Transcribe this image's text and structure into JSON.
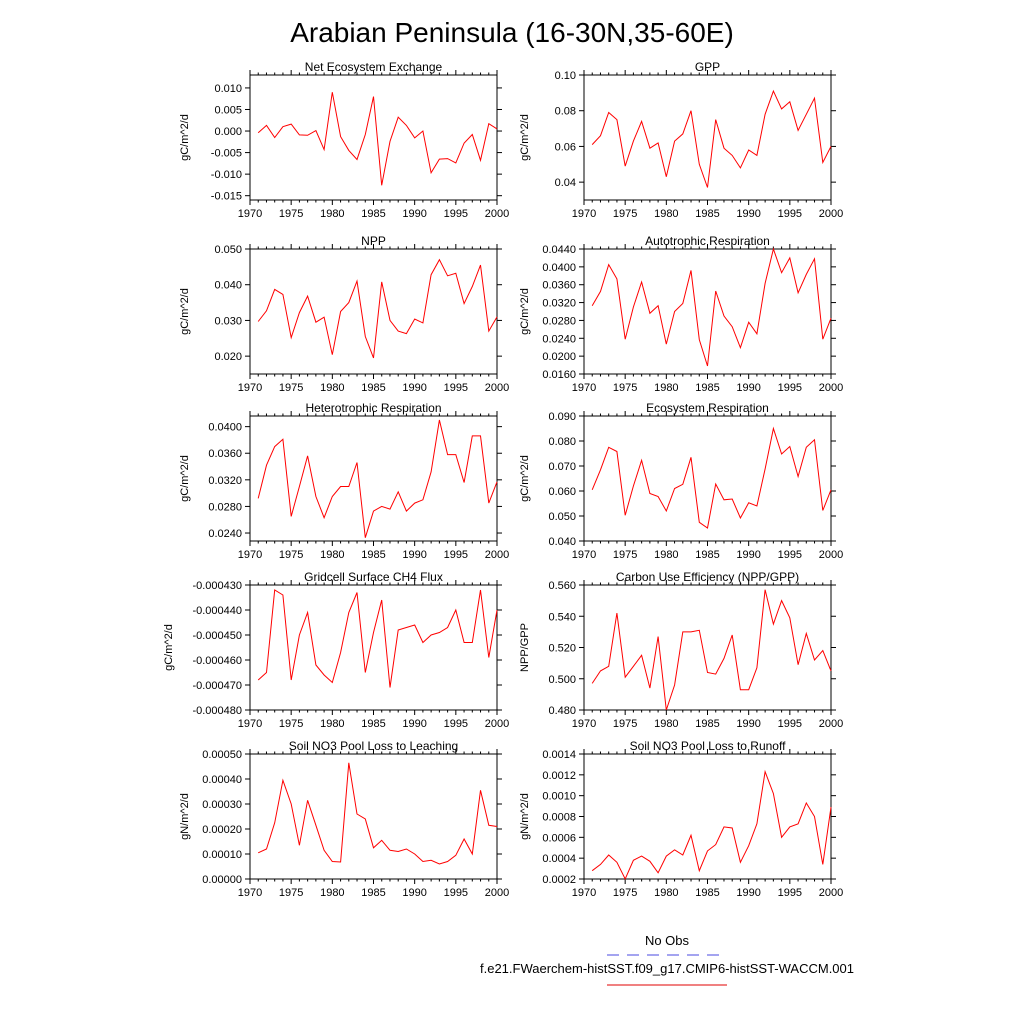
{
  "title": "Arabian Peninsula (16-30N,35-60E)",
  "legend": [
    {
      "label": "No Obs",
      "color": "#4a4ae0",
      "dash": true
    },
    {
      "label": "f.e21.FWaerchem-histSST.f09_g17.CMIP6-histSST-WACCM.001",
      "color": "#e00000",
      "dash": false
    }
  ],
  "colors": {
    "series": "#ff0000",
    "obs": "#4a4ae0"
  },
  "chart_data": [
    {
      "type": "line",
      "title": "Net Ecosystem Exchange",
      "ylabel": "gC/m^2/d",
      "xlim": [
        1970,
        2000
      ],
      "ylim": [
        -0.016,
        0.013
      ],
      "xticks": [
        1970,
        1975,
        1980,
        1985,
        1990,
        1995,
        2000
      ],
      "yticks": [
        "0.010",
        "0.005",
        "0.000",
        "-0.005",
        "-0.010",
        "-0.015"
      ],
      "x": [
        1971,
        1972,
        1973,
        1974,
        1975,
        1976,
        1977,
        1978,
        1979,
        1980,
        1981,
        1982,
        1983,
        1984,
        1985,
        1986,
        1987,
        1988,
        1989,
        1990,
        1991,
        1992,
        1993,
        1994,
        1995,
        1996,
        1997,
        1998,
        1999,
        2000
      ],
      "y": [
        -0.0004,
        0.0013,
        -0.0015,
        0.001,
        0.0016,
        -0.0009,
        -0.001,
        0.0001,
        -0.0043,
        0.009,
        -0.0013,
        -0.0045,
        -0.0066,
        -0.0008,
        0.008,
        -0.0126,
        -0.0024,
        0.0032,
        0.0013,
        -0.0016,
        0.0,
        -0.0097,
        -0.0065,
        -0.0064,
        -0.0074,
        -0.0028,
        -0.0008,
        -0.0068,
        0.0017,
        0.0005
      ]
    },
    {
      "type": "line",
      "title": "GPP",
      "ylabel": "gC/m^2/d",
      "xlim": [
        1970,
        2000
      ],
      "ylim": [
        0.03,
        0.1
      ],
      "xticks": [
        1970,
        1975,
        1980,
        1985,
        1990,
        1995,
        2000
      ],
      "yticks": [
        "0.10",
        "0.08",
        "0.06",
        "0.04"
      ],
      "x": [
        1971,
        1972,
        1973,
        1974,
        1975,
        1976,
        1977,
        1978,
        1979,
        1980,
        1981,
        1982,
        1983,
        1984,
        1985,
        1986,
        1987,
        1988,
        1989,
        1990,
        1991,
        1992,
        1993,
        1994,
        1995,
        1996,
        1997,
        1998,
        1999,
        2000
      ],
      "y": [
        0.061,
        0.066,
        0.079,
        0.075,
        0.049,
        0.063,
        0.074,
        0.059,
        0.062,
        0.043,
        0.063,
        0.067,
        0.08,
        0.05,
        0.037,
        0.075,
        0.059,
        0.055,
        0.048,
        0.058,
        0.055,
        0.078,
        0.091,
        0.081,
        0.085,
        0.069,
        0.078,
        0.087,
        0.051,
        0.06
      ]
    },
    {
      "type": "line",
      "title": "NPP",
      "ylabel": "gC/m^2/d",
      "xlim": [
        1970,
        2000
      ],
      "ylim": [
        0.015,
        0.05
      ],
      "xticks": [
        1970,
        1975,
        1980,
        1985,
        1990,
        1995,
        2000
      ],
      "yticks": [
        "0.050",
        "0.040",
        "0.030",
        "0.020"
      ],
      "x": [
        1971,
        1972,
        1973,
        1974,
        1975,
        1976,
        1977,
        1978,
        1979,
        1980,
        1981,
        1982,
        1983,
        1984,
        1985,
        1986,
        1987,
        1988,
        1989,
        1990,
        1991,
        1992,
        1993,
        1994,
        1995,
        1996,
        1997,
        1998,
        1999,
        2000
      ],
      "y": [
        0.0297,
        0.0327,
        0.0387,
        0.0373,
        0.0252,
        0.0322,
        0.0368,
        0.0295,
        0.0309,
        0.0204,
        0.0325,
        0.035,
        0.041,
        0.0255,
        0.0195,
        0.0408,
        0.03,
        0.027,
        0.0263,
        0.0304,
        0.0293,
        0.0428,
        0.047,
        0.0425,
        0.0432,
        0.0347,
        0.0395,
        0.0455,
        0.027,
        0.031
      ]
    },
    {
      "type": "line",
      "title": "Autotrophic Respiration",
      "ylabel": "gC/m^2/d",
      "xlim": [
        1970,
        2000
      ],
      "ylim": [
        0.016,
        0.044
      ],
      "xticks": [
        1970,
        1975,
        1980,
        1985,
        1990,
        1995,
        2000
      ],
      "yticks": [
        "0.0440",
        "0.0400",
        "0.0360",
        "0.0320",
        "0.0280",
        "0.0240",
        "0.0200",
        "0.0160"
      ],
      "x": [
        1971,
        1972,
        1973,
        1974,
        1975,
        1976,
        1977,
        1978,
        1979,
        1980,
        1981,
        1982,
        1983,
        1984,
        1985,
        1986,
        1987,
        1988,
        1989,
        1990,
        1991,
        1992,
        1993,
        1994,
        1995,
        1996,
        1997,
        1998,
        1999,
        2000
      ],
      "y": [
        0.0313,
        0.0345,
        0.0405,
        0.0373,
        0.0238,
        0.031,
        0.0366,
        0.0296,
        0.0313,
        0.0227,
        0.03,
        0.0318,
        0.0392,
        0.0237,
        0.0178,
        0.0346,
        0.029,
        0.0266,
        0.0219,
        0.0276,
        0.025,
        0.0363,
        0.044,
        0.0387,
        0.042,
        0.0342,
        0.0383,
        0.0418,
        0.0238,
        0.0285
      ]
    },
    {
      "type": "line",
      "title": "Heterotrophic Respiration",
      "ylabel": "gC/m^2/d",
      "xlim": [
        1970,
        2000
      ],
      "ylim": [
        0.0228,
        0.0416
      ],
      "xticks": [
        1970,
        1975,
        1980,
        1985,
        1990,
        1995,
        2000
      ],
      "yticks": [
        "0.0400",
        "0.0360",
        "0.0320",
        "0.0280",
        "0.0240"
      ],
      "x": [
        1971,
        1972,
        1973,
        1974,
        1975,
        1976,
        1977,
        1978,
        1979,
        1980,
        1981,
        1982,
        1983,
        1984,
        1985,
        1986,
        1987,
        1988,
        1989,
        1990,
        1991,
        1992,
        1993,
        1994,
        1995,
        1996,
        1997,
        1998,
        1999,
        2000
      ],
      "y": [
        0.0292,
        0.0342,
        0.037,
        0.0381,
        0.0265,
        0.031,
        0.0356,
        0.0295,
        0.0263,
        0.0295,
        0.031,
        0.031,
        0.0346,
        0.0233,
        0.0273,
        0.028,
        0.0276,
        0.0302,
        0.0273,
        0.0285,
        0.029,
        0.0332,
        0.041,
        0.0358,
        0.0358,
        0.0316,
        0.0386,
        0.0386,
        0.0285,
        0.0317
      ]
    },
    {
      "type": "line",
      "title": "Ecosystem Respiration",
      "ylabel": "gC/m^2/d",
      "xlim": [
        1970,
        2000
      ],
      "ylim": [
        0.04,
        0.09
      ],
      "xticks": [
        1970,
        1975,
        1980,
        1985,
        1990,
        1995,
        2000
      ],
      "yticks": [
        "0.090",
        "0.080",
        "0.070",
        "0.060",
        "0.050",
        "0.040"
      ],
      "x": [
        1971,
        1972,
        1973,
        1974,
        1975,
        1976,
        1977,
        1978,
        1979,
        1980,
        1981,
        1982,
        1983,
        1984,
        1985,
        1986,
        1987,
        1988,
        1989,
        1990,
        1991,
        1992,
        1993,
        1994,
        1995,
        1996,
        1997,
        1998,
        1999,
        2000
      ],
      "y": [
        0.0605,
        0.0685,
        0.0775,
        0.0758,
        0.0503,
        0.062,
        0.0723,
        0.059,
        0.0578,
        0.052,
        0.061,
        0.0627,
        0.0735,
        0.0475,
        0.0452,
        0.0628,
        0.0565,
        0.0568,
        0.0492,
        0.0553,
        0.054,
        0.0688,
        0.085,
        0.0748,
        0.0778,
        0.0658,
        0.0775,
        0.0805,
        0.0522,
        0.0605
      ]
    },
    {
      "type": "line",
      "title": "Gridcell Surface CH4 Flux",
      "ylabel": "gC/m^2/d",
      "xlim": [
        1970,
        2000
      ],
      "ylim": [
        -0.00048,
        -0.00043
      ],
      "xticks": [
        1970,
        1975,
        1980,
        1985,
        1990,
        1995,
        2000
      ],
      "yticks": [
        "-0.000430",
        "-0.000440",
        "-0.000450",
        "-0.000460",
        "-0.000470",
        "-0.000480"
      ],
      "x": [
        1971,
        1972,
        1973,
        1974,
        1975,
        1976,
        1977,
        1978,
        1979,
        1980,
        1981,
        1982,
        1983,
        1984,
        1985,
        1986,
        1987,
        1988,
        1989,
        1990,
        1991,
        1992,
        1993,
        1994,
        1995,
        1996,
        1997,
        1998,
        1999,
        2000
      ],
      "y": [
        -0.000468,
        -0.000465,
        -0.000432,
        -0.000434,
        -0.000468,
        -0.00045,
        -0.000441,
        -0.000462,
        -0.000466,
        -0.000469,
        -0.000457,
        -0.000441,
        -0.000433,
        -0.000465,
        -0.000449,
        -0.000436,
        -0.000471,
        -0.000448,
        -0.000447,
        -0.000446,
        -0.000453,
        -0.00045,
        -0.000449,
        -0.000447,
        -0.00044,
        -0.000453,
        -0.000453,
        -0.000432,
        -0.000459,
        -0.00044
      ]
    },
    {
      "type": "line",
      "title": "Carbon Use Efficiency (NPP/GPP)",
      "ylabel": "NPP/GPP",
      "xlim": [
        1970,
        2000
      ],
      "ylim": [
        0.48,
        0.56
      ],
      "xticks": [
        1970,
        1975,
        1980,
        1985,
        1990,
        1995,
        2000
      ],
      "yticks": [
        "0.560",
        "0.540",
        "0.520",
        "0.500",
        "0.480"
      ],
      "x": [
        1971,
        1972,
        1973,
        1974,
        1975,
        1976,
        1977,
        1978,
        1979,
        1980,
        1981,
        1982,
        1983,
        1984,
        1985,
        1986,
        1987,
        1988,
        1989,
        1990,
        1991,
        1992,
        1993,
        1994,
        1995,
        1996,
        1997,
        1998,
        1999,
        2000
      ],
      "y": [
        0.497,
        0.505,
        0.508,
        0.542,
        0.501,
        0.508,
        0.515,
        0.494,
        0.527,
        0.48,
        0.496,
        0.53,
        0.53,
        0.531,
        0.504,
        0.503,
        0.513,
        0.528,
        0.493,
        0.493,
        0.507,
        0.557,
        0.535,
        0.55,
        0.539,
        0.509,
        0.529,
        0.512,
        0.518,
        0.505
      ]
    },
    {
      "type": "line",
      "title": "Soil NO3 Pool Loss to Leaching",
      "ylabel": "gN/m^2/d",
      "xlim": [
        1970,
        2000
      ],
      "ylim": [
        0.0,
        0.0005
      ],
      "xticks": [
        1970,
        1975,
        1980,
        1985,
        1990,
        1995,
        2000
      ],
      "yticks": [
        "0.00050",
        "0.00040",
        "0.00030",
        "0.00020",
        "0.00010",
        "0.00000"
      ],
      "x": [
        1971,
        1972,
        1973,
        1974,
        1975,
        1976,
        1977,
        1978,
        1979,
        1980,
        1981,
        1982,
        1983,
        1984,
        1985,
        1986,
        1987,
        1988,
        1989,
        1990,
        1991,
        1992,
        1993,
        1994,
        1995,
        1996,
        1997,
        1998,
        1999,
        2000
      ],
      "y": [
        0.000105,
        0.00012,
        0.000225,
        0.000395,
        0.0003,
        0.000135,
        0.000315,
        0.000215,
        0.000115,
        7e-05,
        6.8e-05,
        0.000465,
        0.00026,
        0.00024,
        0.000125,
        0.000155,
        0.000115,
        0.00011,
        0.00012,
        0.0001,
        7e-05,
        7.5e-05,
        6e-05,
        7e-05,
        9.5e-05,
        0.00016,
        0.0001,
        0.000355,
        0.000215,
        0.00021
      ]
    },
    {
      "type": "line",
      "title": "Soil NO3 Pool Loss to Runoff",
      "ylabel": "gN/m^2/d",
      "xlim": [
        1970,
        2000
      ],
      "ylim": [
        0.0002,
        0.0014
      ],
      "xticks": [
        1970,
        1975,
        1980,
        1985,
        1990,
        1995,
        2000
      ],
      "yticks": [
        "0.0014",
        "0.0012",
        "0.0010",
        "0.0008",
        "0.0006",
        "0.0004",
        "0.0002"
      ],
      "x": [
        1971,
        1972,
        1973,
        1974,
        1975,
        1976,
        1977,
        1978,
        1979,
        1980,
        1981,
        1982,
        1983,
        1984,
        1985,
        1986,
        1987,
        1988,
        1989,
        1990,
        1991,
        1992,
        1993,
        1994,
        1995,
        1996,
        1997,
        1998,
        1999,
        2000
      ],
      "y": [
        0.00028,
        0.00034,
        0.00043,
        0.00036,
        0.0002,
        0.00038,
        0.00042,
        0.00037,
        0.00026,
        0.00042,
        0.00048,
        0.00043,
        0.00062,
        0.00028,
        0.00047,
        0.00053,
        0.0007,
        0.00069,
        0.00036,
        0.00052,
        0.00073,
        0.00123,
        0.00102,
        0.0006,
        0.0007,
        0.00073,
        0.00093,
        0.0008,
        0.00034,
        0.00089
      ]
    }
  ]
}
